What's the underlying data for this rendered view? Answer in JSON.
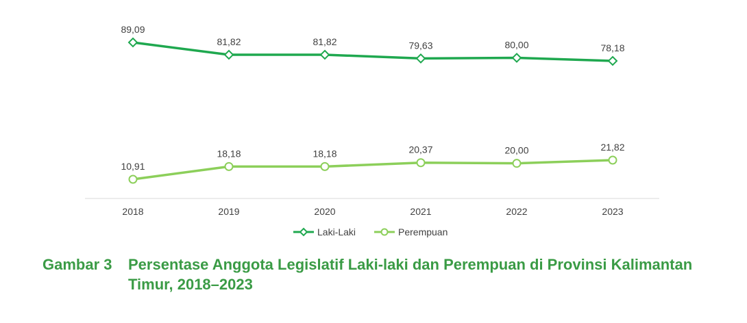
{
  "chart_data": {
    "type": "line",
    "categories": [
      "2018",
      "2019",
      "2020",
      "2021",
      "2022",
      "2023"
    ],
    "series": [
      {
        "name": "Laki-Laki",
        "color": "#1fa84f",
        "marker": "diamond",
        "values": [
          89.09,
          81.82,
          81.82,
          79.63,
          80.0,
          78.18
        ],
        "labels": [
          "89,09",
          "81,82",
          "81,82",
          "79,63",
          "80,00",
          "78,18"
        ]
      },
      {
        "name": "Perempuan",
        "color": "#8ccf5a",
        "marker": "circle",
        "values": [
          10.91,
          18.18,
          18.18,
          20.37,
          20.0,
          21.82
        ],
        "labels": [
          "10,91",
          "18,18",
          "18,18",
          "20,37",
          "20,00",
          "21,82"
        ]
      }
    ],
    "ylim": [
      0,
      100
    ],
    "grid": false,
    "legend": "bottom"
  },
  "caption": {
    "figure_label": "Gambar 3",
    "title": "Persentase Anggota Legislatif Laki-laki dan Perempuan di Provinsi Kalimantan Timur, 2018–2023"
  }
}
